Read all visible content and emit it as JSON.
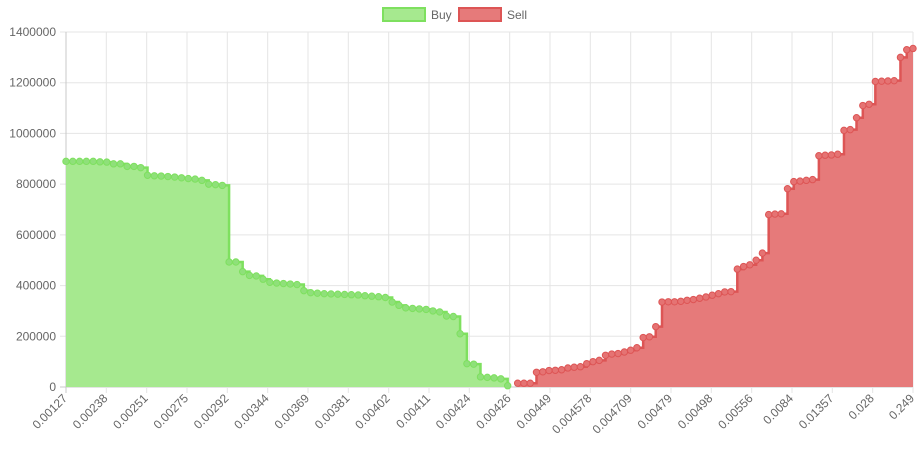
{
  "chart_data": {
    "type": "area",
    "title": "",
    "xlabel": "",
    "ylabel": "",
    "ylim": [
      0,
      1400000
    ],
    "y_ticks": [
      0,
      200000,
      400000,
      600000,
      800000,
      1000000,
      1200000,
      1400000
    ],
    "x_tick_labels": [
      "0.00127",
      "0.00238",
      "0.00251",
      "0.00275",
      "0.00292",
      "0.00344",
      "0.00369",
      "0.00381",
      "0.00402",
      "0.00411",
      "0.00424",
      "0.00426",
      "0.00449",
      "0.004578",
      "0.004709",
      "0.00479",
      "0.00498",
      "0.00556",
      "0.0084",
      "0.01357",
      "0.028",
      "0.249"
    ],
    "grid": true,
    "step": true,
    "legend_position": "top",
    "series": [
      {
        "name": "Buy",
        "color": "#8FE07A",
        "line_color": "#7EE05F",
        "fill_color": "#A6E98F",
        "values": [
          890000,
          890000,
          890000,
          890000,
          890000,
          888000,
          887000,
          880000,
          880000,
          870000,
          870000,
          865000,
          835000,
          833000,
          832000,
          830000,
          828000,
          825000,
          822000,
          820000,
          815000,
          800000,
          798000,
          795000,
          493000,
          493000,
          455000,
          440000,
          438000,
          425000,
          413000,
          410000,
          408000,
          406000,
          404000,
          380000,
          372000,
          370000,
          368000,
          367000,
          366000,
          365000,
          364000,
          363000,
          360000,
          358000,
          356000,
          353000,
          335000,
          322000,
          312000,
          310000,
          308000,
          306000,
          300000,
          296000,
          280000,
          278000,
          210000,
          92000,
          90000,
          40000,
          38000,
          36000,
          32000,
          5000
        ]
      },
      {
        "name": "Sell",
        "color": "#E57373",
        "line_color": "#DD5555",
        "fill_color": "#E67A7A",
        "values": [
          15000,
          15000,
          15000,
          58000,
          60000,
          65000,
          66000,
          68000,
          75000,
          78000,
          80000,
          92000,
          100000,
          105000,
          125000,
          130000,
          132000,
          138000,
          145000,
          155000,
          195000,
          198000,
          238000,
          335000,
          336000,
          336000,
          338000,
          342000,
          345000,
          350000,
          355000,
          362000,
          368000,
          375000,
          376000,
          465000,
          475000,
          482000,
          500000,
          528000,
          680000,
          682000,
          683000,
          782000,
          810000,
          812000,
          815000,
          818000,
          912000,
          914000,
          915000,
          918000,
          1012000,
          1015000,
          1062000,
          1110000,
          1115000,
          1205000,
          1206000,
          1207000,
          1208000,
          1300000,
          1330000,
          1335000
        ]
      }
    ]
  }
}
